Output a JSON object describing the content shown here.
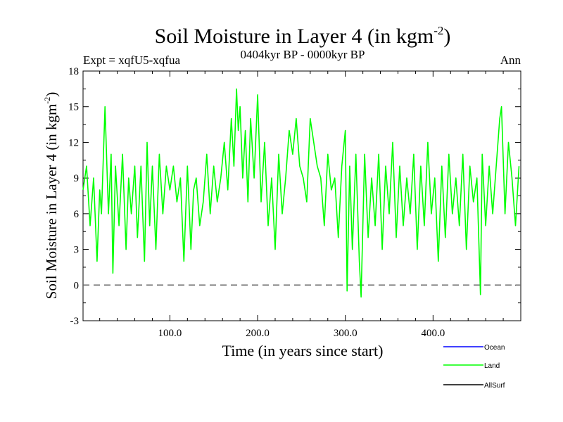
{
  "chart_data": {
    "type": "line",
    "title": "Soil Moisture in Layer 4 (in kgm",
    "title_sup": "-2",
    "title_close": ")",
    "subtitle": "0404kyr BP - 0000kyr BP",
    "left_label": "Expt = xqfU5-xqfua",
    "right_label": "Ann",
    "xlabel": "Time (in years since start)",
    "ylabel": "Soil Moisture in Layer 4 (in kgm",
    "ylabel_sup": "-2",
    "ylabel_close": ")",
    "xlim": [
      1,
      500
    ],
    "ylim": [
      -3,
      18
    ],
    "xticks": [
      100,
      200,
      300,
      400
    ],
    "xtick_labels": [
      "100.0",
      "200.0",
      "300.0",
      "400.0"
    ],
    "yticks": [
      -3,
      0,
      3,
      6,
      9,
      12,
      15,
      18
    ],
    "ytick_labels": [
      "-3",
      "0",
      "3",
      "6",
      "9",
      "12",
      "15",
      "18"
    ],
    "zero_line": 0,
    "legend": [
      {
        "name": "Ocean",
        "color": "#0000ff"
      },
      {
        "name": "Land",
        "color": "#00ff00"
      },
      {
        "name": "AllSurf",
        "color": "#000000"
      }
    ],
    "series": [
      {
        "name": "Land",
        "color": "#00ff00",
        "x": [
          1,
          5,
          9,
          13,
          17,
          20,
          22,
          26,
          30,
          33,
          35,
          38,
          42,
          46,
          50,
          53,
          56,
          60,
          63,
          67,
          71,
          74,
          77,
          80,
          84,
          88,
          92,
          96,
          100,
          104,
          108,
          112,
          116,
          120,
          124,
          127,
          130,
          134,
          138,
          142,
          146,
          150,
          154,
          158,
          162,
          166,
          170,
          173,
          176,
          178,
          180,
          183,
          186,
          189,
          192,
          196,
          200,
          204,
          208,
          212,
          216,
          220,
          224,
          228,
          232,
          236,
          240,
          244,
          248,
          252,
          256,
          260,
          264,
          268,
          272,
          276,
          280,
          284,
          288,
          292,
          296,
          300,
          302,
          305,
          308,
          312,
          316,
          318,
          322,
          326,
          330,
          334,
          338,
          342,
          346,
          350,
          354,
          358,
          362,
          366,
          370,
          374,
          378,
          382,
          386,
          390,
          394,
          398,
          402,
          406,
          410,
          414,
          418,
          422,
          426,
          430,
          434,
          438,
          442,
          446,
          450,
          454,
          456,
          460,
          464,
          468,
          472,
          476,
          478,
          482,
          486,
          490,
          494,
          498
        ],
        "values": [
          8,
          10,
          5,
          9,
          2,
          8,
          6,
          15,
          6,
          11,
          1,
          10,
          5,
          11,
          3,
          9,
          6,
          10,
          4,
          10,
          2,
          12,
          5,
          10,
          3,
          11,
          6,
          10,
          8,
          10,
          7,
          9,
          2,
          10,
          3,
          8,
          9,
          5,
          7,
          11,
          6,
          10,
          7,
          9,
          12,
          8,
          14,
          10,
          16.5,
          13,
          15,
          9,
          13,
          7,
          14,
          9,
          16,
          7,
          12,
          5,
          9,
          3,
          11,
          6,
          9,
          13,
          11,
          14,
          10,
          9,
          7,
          14,
          12,
          10,
          9,
          5,
          11,
          8,
          9,
          4,
          10,
          13,
          -0.5,
          10,
          3,
          11,
          2,
          -1,
          11,
          4,
          9,
          5,
          11,
          3,
          10,
          6,
          12,
          4,
          10,
          5,
          9,
          6,
          11,
          3,
          10,
          5,
          12,
          6,
          9,
          2,
          10,
          4,
          11,
          6,
          9,
          5,
          11,
          3,
          10,
          7,
          9,
          -0.8,
          11,
          5,
          10,
          6,
          10,
          14,
          15,
          6,
          12,
          9,
          5,
          10
        ]
      }
    ]
  }
}
